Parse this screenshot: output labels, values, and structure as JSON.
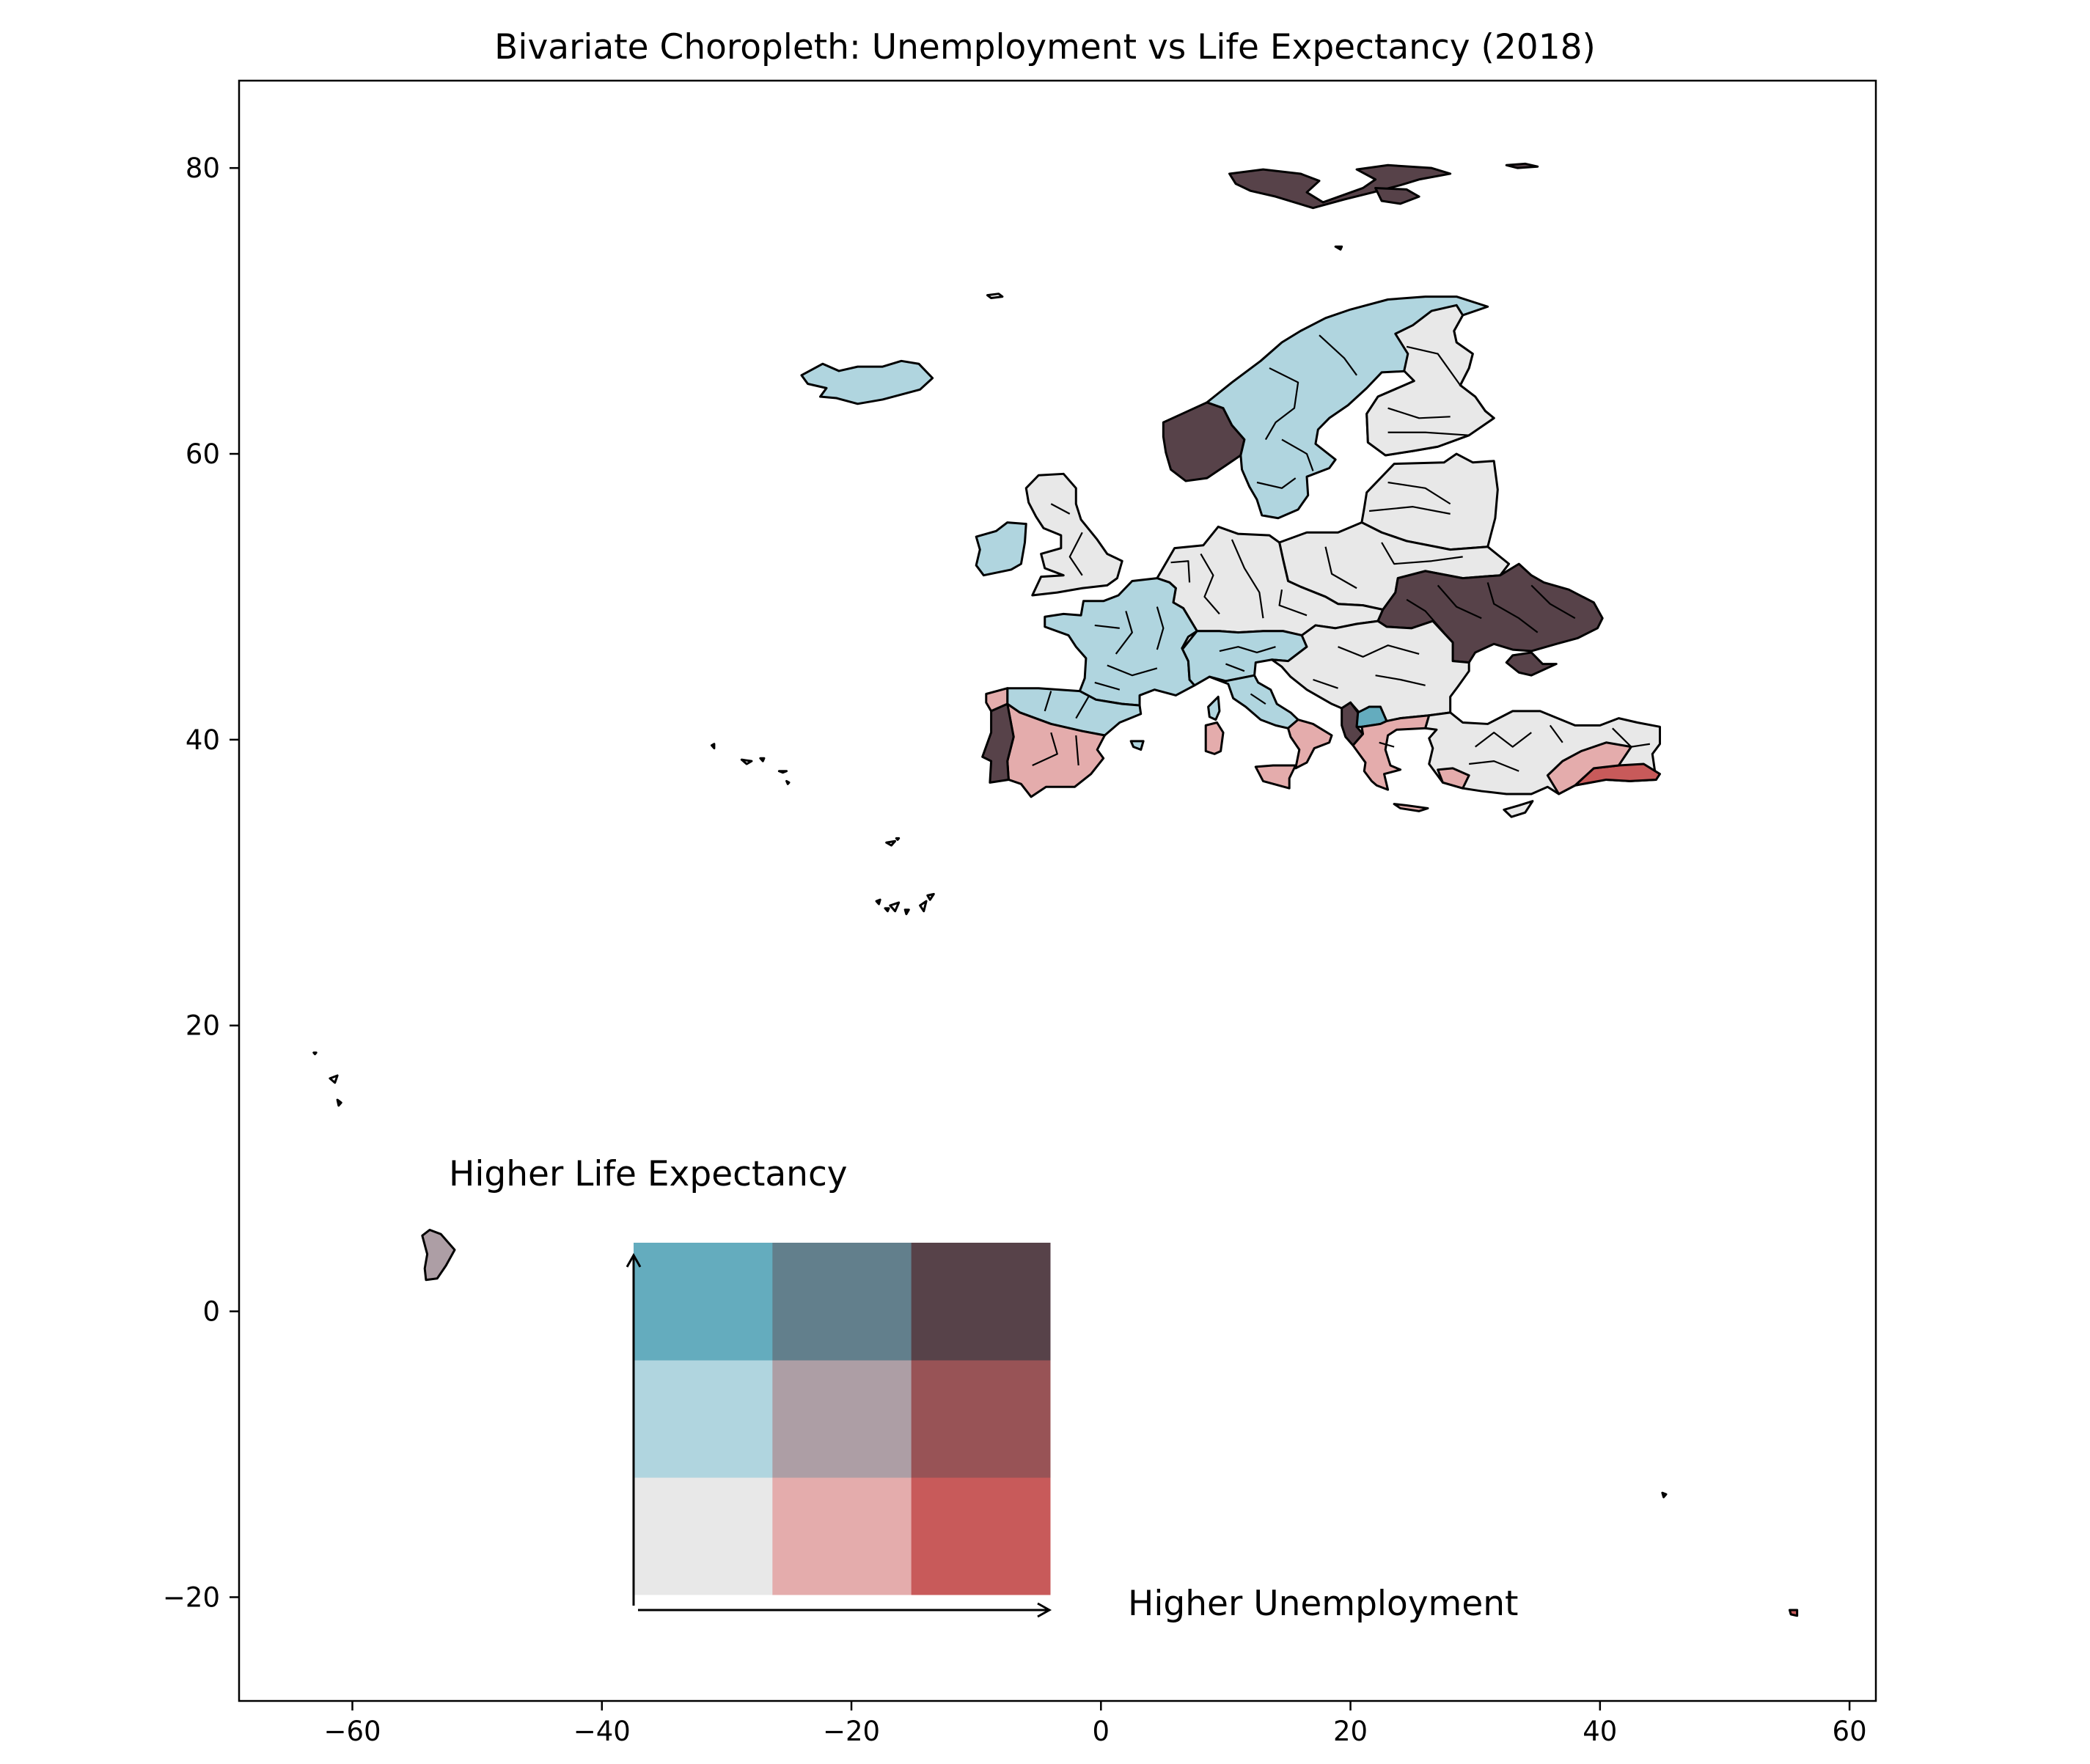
{
  "chart_data": {
    "type": "bivariate-choropleth",
    "title": "Bivariate Choropleth: Unemployment vs Life Expectancy (2018)",
    "xlabel": "",
    "ylabel": "",
    "xlim": [
      -69,
      62
    ],
    "ylim": [
      -26,
      86
    ],
    "x_ticks": [
      -60,
      -40,
      -20,
      0,
      20,
      40,
      60
    ],
    "y_ticks": [
      -20,
      0,
      20,
      40,
      60,
      80
    ],
    "x_tick_labels": [
      "−60",
      "−40",
      "−20",
      "0",
      "20",
      "40",
      "60"
    ],
    "y_tick_labels": [
      "−20",
      "0",
      "20",
      "40",
      "60",
      "80"
    ],
    "legend": {
      "x_label": "Higher Unemployment",
      "y_label": "Higher Life Expectancy",
      "grid_colors": [
        [
          "#e8e8e8",
          "#e4acac",
          "#c85a5a"
        ],
        [
          "#b0d5df",
          "#ad9ea5",
          "#985356"
        ],
        [
          "#64acbe",
          "#627f8c",
          "#574249"
        ]
      ],
      "grid_row_order": "bottom-to-top (life expectancy low to high), columns left-to-right (unemployment low to high)"
    },
    "region_classes": [
      {
        "name": "Svalbard",
        "color": "#574249"
      },
      {
        "name": "Iceland",
        "color": "#b0d5df"
      },
      {
        "name": "Norway",
        "color": "#b0d5df"
      },
      {
        "name": "Western Norway",
        "color": "#574249"
      },
      {
        "name": "Sweden",
        "color": "#b0d5df"
      },
      {
        "name": "Finland",
        "color": "#e8e8e8"
      },
      {
        "name": "Baltics",
        "color": "#e8e8e8"
      },
      {
        "name": "Ireland",
        "color": "#b0d5df"
      },
      {
        "name": "Britain",
        "color": "#e8e8e8"
      },
      {
        "name": "Central Europe",
        "color": "#e8e8e8"
      },
      {
        "name": "Poland",
        "color": "#e8e8e8"
      },
      {
        "name": "France",
        "color": "#b0d5df"
      },
      {
        "name": "Alps",
        "color": "#b0d5df"
      },
      {
        "name": "Italy North",
        "color": "#b0d5df"
      },
      {
        "name": "Italy South",
        "color": "#e4acac"
      },
      {
        "name": "Sicily",
        "color": "#e4acac"
      },
      {
        "name": "Sardinia",
        "color": "#e4acac"
      },
      {
        "name": "Corsica",
        "color": "#b0d5df"
      },
      {
        "name": "Iberia",
        "color": "#e4acac"
      },
      {
        "name": "Iberia North",
        "color": "#b0d5df"
      },
      {
        "name": "Portugal",
        "color": "#574249"
      },
      {
        "name": "Ukraine",
        "color": "#574249"
      },
      {
        "name": "Crimea",
        "color": "#574249"
      },
      {
        "name": "Romania",
        "color": "#e8e8e8"
      },
      {
        "name": "Balkans",
        "color": "#e8e8e8"
      },
      {
        "name": "Albania",
        "color": "#574249"
      },
      {
        "name": "Macedonia",
        "color": "#64acbe"
      },
      {
        "name": "Greece",
        "color": "#e4acac"
      },
      {
        "name": "Turkey",
        "color": "#e8e8e8"
      },
      {
        "name": "Turkey East",
        "color": "#c85a5a"
      },
      {
        "name": "Turkey Central",
        "color": "#e4acac"
      },
      {
        "name": "French Guiana",
        "color": "#ad9ea5"
      },
      {
        "name": "Cyprus",
        "color": "#e8e8e8"
      },
      {
        "name": "Reunion",
        "color": "#c85a5a"
      }
    ]
  }
}
